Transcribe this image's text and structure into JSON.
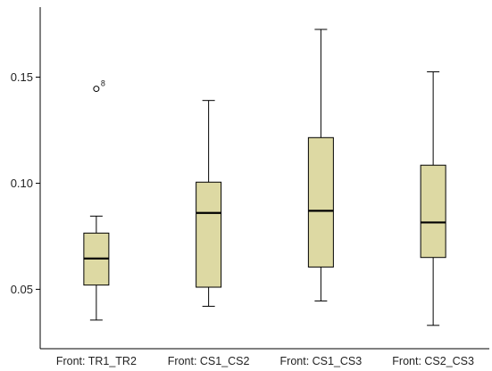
{
  "chart_data": {
    "type": "box",
    "title": "",
    "xlabel": "",
    "ylabel": "",
    "ylim": [
      0.022,
      0.183
    ],
    "yticks": [
      {
        "value": 0.05,
        "label": "0.05"
      },
      {
        "value": 0.1,
        "label": "0.10"
      },
      {
        "value": 0.15,
        "label": "0.15"
      }
    ],
    "grid": false,
    "legend": "none",
    "box_color": "#ddd9a3",
    "categories": [
      "Front: TR1_TR2",
      "Front: CS1_CS2",
      "Front: CS1_CS3",
      "Front: CS2_CS3"
    ],
    "boxes": [
      {
        "min": 0.0355,
        "q1": 0.052,
        "median": 0.0645,
        "q3": 0.0765,
        "max": 0.0845,
        "outliers": [
          {
            "value": 0.1445,
            "label": "8"
          }
        ]
      },
      {
        "min": 0.042,
        "q1": 0.051,
        "median": 0.086,
        "q3": 0.1005,
        "max": 0.139,
        "outliers": []
      },
      {
        "min": 0.0445,
        "q1": 0.0605,
        "median": 0.087,
        "q3": 0.1215,
        "max": 0.1725,
        "outliers": []
      },
      {
        "min": 0.033,
        "q1": 0.065,
        "median": 0.0815,
        "q3": 0.1085,
        "max": 0.1525,
        "outliers": []
      }
    ]
  }
}
